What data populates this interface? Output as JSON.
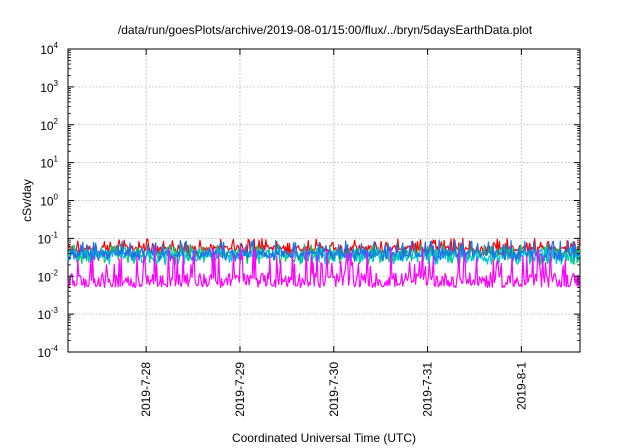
{
  "chart_data": {
    "type": "line",
    "title": "/data/run/goesPlots/archive/2019-08-01/15:00/flux/../bryn/5daysEarthData.plot",
    "xlabel": "Coordinated Universal Time (UTC)",
    "ylabel": "cSv/day",
    "yscale": "log",
    "ylim": [
      0.0001,
      10000
    ],
    "grid": true,
    "legend": "none",
    "x_range": [
      "2019-07-27 04:00",
      "2019-08-01 15:00"
    ],
    "x_ticks": [
      {
        "label": "2019-7-28",
        "date": "2019-07-28"
      },
      {
        "label": "2019-7-29",
        "date": "2019-07-29"
      },
      {
        "label": "2019-7-30",
        "date": "2019-07-30"
      },
      {
        "label": "2019-7-31",
        "date": "2019-07-31"
      },
      {
        "label": "2019-8-1",
        "date": "2019-08-01"
      }
    ],
    "y_ticks": [
      {
        "base": "10",
        "exp": "4",
        "value": 10000
      },
      {
        "base": "10",
        "exp": "3",
        "value": 1000
      },
      {
        "base": "10",
        "exp": "2",
        "value": 100
      },
      {
        "base": "10",
        "exp": "1",
        "value": 10
      },
      {
        "base": "10",
        "exp": "0",
        "value": 1
      },
      {
        "base": "10",
        "exp": "-1",
        "value": 0.1
      },
      {
        "base": "10",
        "exp": "-2",
        "value": 0.01
      },
      {
        "base": "10",
        "exp": "-3",
        "value": 0.001
      },
      {
        "base": "10",
        "exp": "-4",
        "value": 0.0001
      }
    ],
    "series": [
      {
        "color": "#ff0000",
        "typical": 0.055,
        "spread_low": 0.035,
        "spread_high": 0.1
      },
      {
        "color": "#00cc66",
        "typical": 0.04,
        "spread_low": 0.02,
        "spread_high": 0.07
      },
      {
        "color": "#00c8d8",
        "typical": 0.035,
        "spread_low": 0.02,
        "spread_high": 0.06
      },
      {
        "color": "#1e6fe8",
        "typical": 0.04,
        "spread_low": 0.025,
        "spread_high": 0.09
      },
      {
        "color": "#ff00ff",
        "typical": 0.008,
        "spread_low": 0.005,
        "spread_high": 0.06
      }
    ]
  }
}
